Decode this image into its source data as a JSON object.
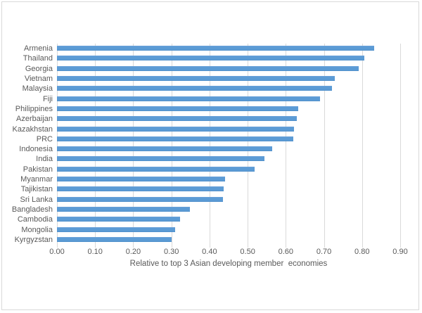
{
  "chart_data": {
    "type": "bar",
    "orientation": "horizontal",
    "title": "",
    "xlabel": "Relative to top 3 Asian developing member  economies",
    "ylabel": "",
    "xlim": [
      0,
      0.9
    ],
    "x_ticks": [
      "0.00",
      "0.10",
      "0.20",
      "0.30",
      "0.40",
      "0.50",
      "0.60",
      "0.70",
      "0.80",
      "0.90"
    ],
    "x_tick_values": [
      0.0,
      0.1,
      0.2,
      0.3,
      0.4,
      0.5,
      0.6,
      0.7,
      0.8,
      0.9
    ],
    "grid": "vertical-on",
    "legend": "none",
    "categories": [
      "Armenia",
      "Thailand",
      "Georgia",
      "Vietnam",
      "Malaysia",
      "Fiji",
      "Philippines",
      "Azerbaijan",
      "Kazakhstan",
      "PRC",
      "Indonesia",
      "India",
      "Pakistan",
      "Myanmar",
      "Tajikistan",
      "Sri Lanka",
      "Bangladesh",
      "Cambodia",
      "Mongolia",
      "Kyrgyzstan"
    ],
    "values": [
      0.832,
      0.806,
      0.792,
      0.728,
      0.722,
      0.69,
      0.632,
      0.628,
      0.622,
      0.62,
      0.565,
      0.544,
      0.518,
      0.44,
      0.437,
      0.435,
      0.349,
      0.322,
      0.31,
      0.3
    ],
    "colors": {
      "bar": "#5b9bd5",
      "gridline": "#d9d9d9",
      "text": "#595959",
      "frame_border": "#d9d9d9",
      "background": "#ffffff"
    }
  }
}
